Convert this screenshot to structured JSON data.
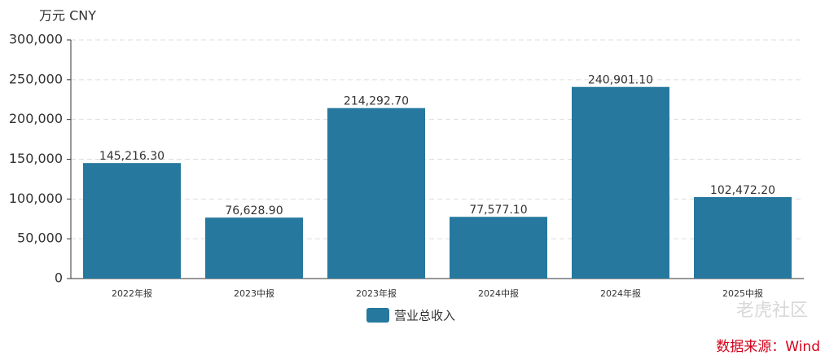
{
  "chart_data": {
    "type": "bar",
    "unit": "万元  CNY",
    "categories": [
      "2022年报",
      "2023中报",
      "2023年报",
      "2024中报",
      "2024年报",
      "2025中报"
    ],
    "series": [
      {
        "name": "营业总收入",
        "color": "#26789f",
        "values": [
          145216.3,
          76628.9,
          214292.7,
          77577.1,
          240901.1,
          102472.2
        ],
        "value_labels": [
          "145,216.30",
          "76,628.90",
          "214,292.70",
          "77,577.10",
          "240,901.10",
          "102,472.20"
        ]
      }
    ],
    "ylim": [
      0,
      300000
    ],
    "yticks": [
      0,
      {
        "value": 50000,
        "label": "50,000"
      },
      {
        "value": 100000,
        "label": "100,000"
      },
      {
        "value": 150000,
        "label": "150,000"
      },
      {
        "value": 200000,
        "label": "200,000"
      },
      {
        "value": 250000,
        "label": "250,000"
      },
      {
        "value": 300000,
        "label": "300,000"
      }
    ],
    "grid": true,
    "source": "数据来源：Wind",
    "watermark": "老虎社区"
  }
}
